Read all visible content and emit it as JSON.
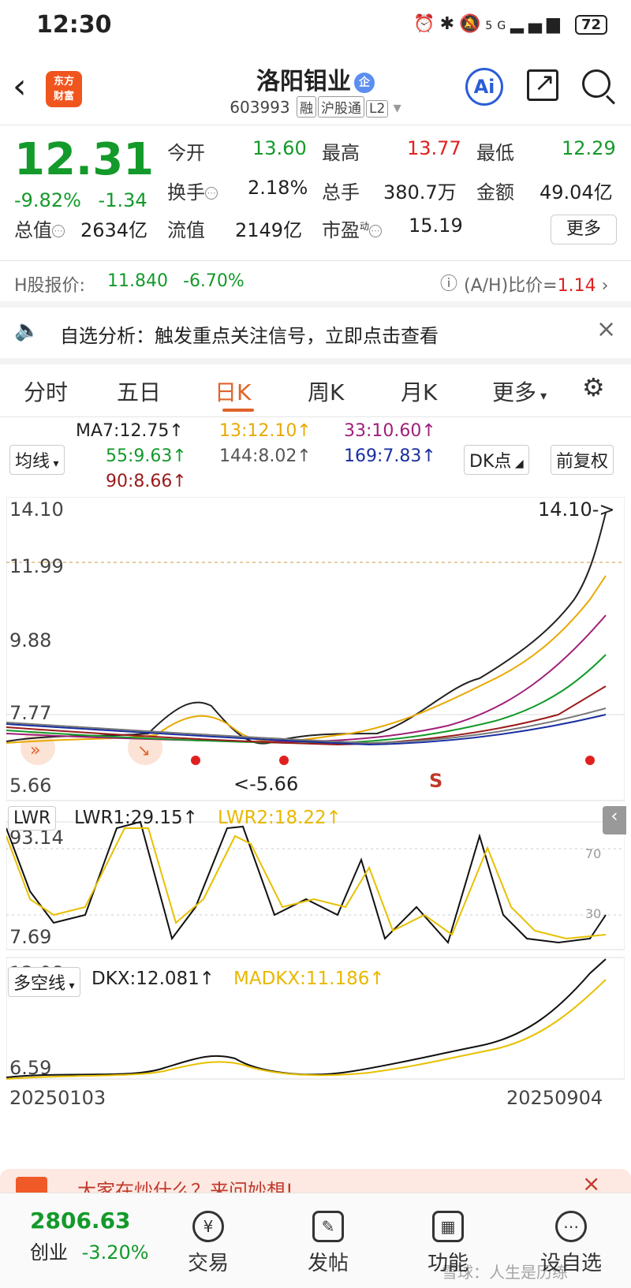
{
  "status_bar": {
    "time": "12:30",
    "signal": "5G",
    "battery": "72"
  },
  "header": {
    "title": "洛阳钼业",
    "enterprise_badge": "企",
    "code": "603993",
    "tags": [
      "融",
      "沪股通",
      "L2"
    ],
    "logo_line1": "东方",
    "logo_line2": "财富",
    "ai_label": "Ai"
  },
  "quote": {
    "price": "12.31",
    "change_pct": "-9.82%",
    "change_abs": "-1.34",
    "open_label": "今开",
    "open": "13.60",
    "high_label": "最高",
    "high": "13.77",
    "low_label": "最低",
    "low": "12.29",
    "turnover_label": "换手",
    "turnover": "2.18%",
    "volume_label": "总手",
    "volume": "380.7万",
    "amount_label": "金额",
    "amount": "49.04亿",
    "mcap_label": "总值",
    "mcap": "2634亿",
    "float_label": "流值",
    "float": "2149亿",
    "pe_label": "市盈",
    "pe_sup": "动",
    "pe": "15.19",
    "more": "更多"
  },
  "hshare": {
    "label": "H股报价:",
    "price": "11.840",
    "pct": "-6.70%",
    "ratio_label": "(A/H)比价=",
    "ratio": "1.14"
  },
  "notice": {
    "text": "自选分析：触发重点关注信号，立即点击查看"
  },
  "tabs": [
    "分时",
    "五日",
    "日K",
    "周K",
    "月K",
    "更多"
  ],
  "ma_legend": {
    "selector": "均线",
    "ma7": "MA7:12.75↑",
    "ma13": "13:12.10↑",
    "ma33": "33:10.60↑",
    "ma55": "55:9.63↑",
    "ma144": "144:8.02↑",
    "ma169": "169:7.83↑",
    "ma90": "90:8.66↑",
    "dk": "DK点",
    "adjust": "前复权"
  },
  "kline": {
    "y_labels": [
      "14.10",
      "11.99",
      "9.88",
      "7.77",
      "5.66"
    ],
    "max_marker": "14.10->",
    "min_marker": "<-5.66",
    "s_marker": "S"
  },
  "lwr": {
    "selector": "LWR",
    "lwr1": "LWR1:29.15↑",
    "lwr2": "LWR2:18.22↑",
    "y_top": "93.14",
    "y_bottom": "7.69",
    "ref70": "70",
    "ref30": "30"
  },
  "dkx": {
    "selector": "多空线",
    "dkx": "DKX:12.081↑",
    "madkx": "MADKX:11.186↑",
    "y_top": "12.08",
    "y_bottom": "6.59",
    "date_start": "20250103",
    "date_end": "20250904"
  },
  "banner": {
    "text": "大家在炒什么？来问妙想!"
  },
  "bottom_nav": {
    "index_value": "2806.63",
    "index_name": "创业",
    "index_pct": "-3.20%",
    "trade": "交易",
    "post": "发帖",
    "func": "功能",
    "watch": "设自选",
    "watermark": "雪球：人生是历练"
  }
}
